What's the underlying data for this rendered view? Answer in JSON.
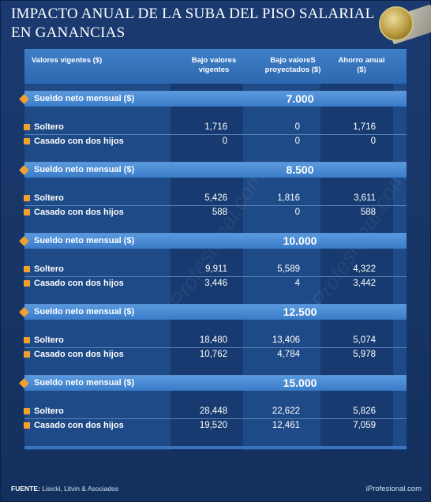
{
  "title": "IMPACTO ANUAL DE LA SUBA DEL PISO SALARIAL EN GANANCIAS",
  "headers": {
    "col0": "Valores vigentes ($)",
    "col1": "Bajo valores vigentes",
    "col2": "Bajo valoreS proyectados ($)",
    "col3": "Ahorro anual ($)"
  },
  "groups": [
    {
      "label": "Sueldo neto mensual ($)",
      "value": "7.000",
      "rows": [
        {
          "label": "Soltero",
          "v1": "1,716",
          "v2": "0",
          "v3": "1,716"
        },
        {
          "label": "Casado con dos hijos",
          "v1": "0",
          "v2": "0",
          "v3": "0"
        }
      ]
    },
    {
      "label": "Sueldo neto mensual ($)",
      "value": "8.500",
      "rows": [
        {
          "label": "Soltero",
          "v1": "5,426",
          "v2": "1,816",
          "v3": "3,611"
        },
        {
          "label": "Casado con dos hijos",
          "v1": "588",
          "v2": "0",
          "v3": "588"
        }
      ]
    },
    {
      "label": "Sueldo neto mensual ($)",
      "value": "10.000",
      "rows": [
        {
          "label": "Soltero",
          "v1": "9,911",
          "v2": "5,589",
          "v3": "4,322"
        },
        {
          "label": "Casado con dos hijos",
          "v1": "3,446",
          "v2": "4",
          "v3": "3,442"
        }
      ]
    },
    {
      "label": "Sueldo neto mensual ($)",
      "value": "12.500",
      "rows": [
        {
          "label": "Soltero",
          "v1": "18,480",
          "v2": "13,406",
          "v3": "5,074"
        },
        {
          "label": "Casado con dos hijos",
          "v1": "10,762",
          "v2": "4,784",
          "v3": "5,978"
        }
      ]
    },
    {
      "label": "Sueldo neto mensual ($)",
      "value": "15.000",
      "rows": [
        {
          "label": "Soltero",
          "v1": "28,448",
          "v2": "22,622",
          "v3": "5,826"
        },
        {
          "label": "Casado con dos hijos",
          "v1": "19,520",
          "v2": "12,461",
          "v3": "7,059"
        }
      ]
    }
  ],
  "footer": {
    "source_label": "FUENTE:",
    "source_text": "Lisicki, Litvin & Asociados",
    "brand": "iProfesional.com"
  },
  "watermark_text": "iProfesional.com",
  "colors": {
    "background": "#14305f",
    "header_band": "#3f7fc7",
    "group_band": "#4a8ad4",
    "bullet": "#f0a030"
  }
}
